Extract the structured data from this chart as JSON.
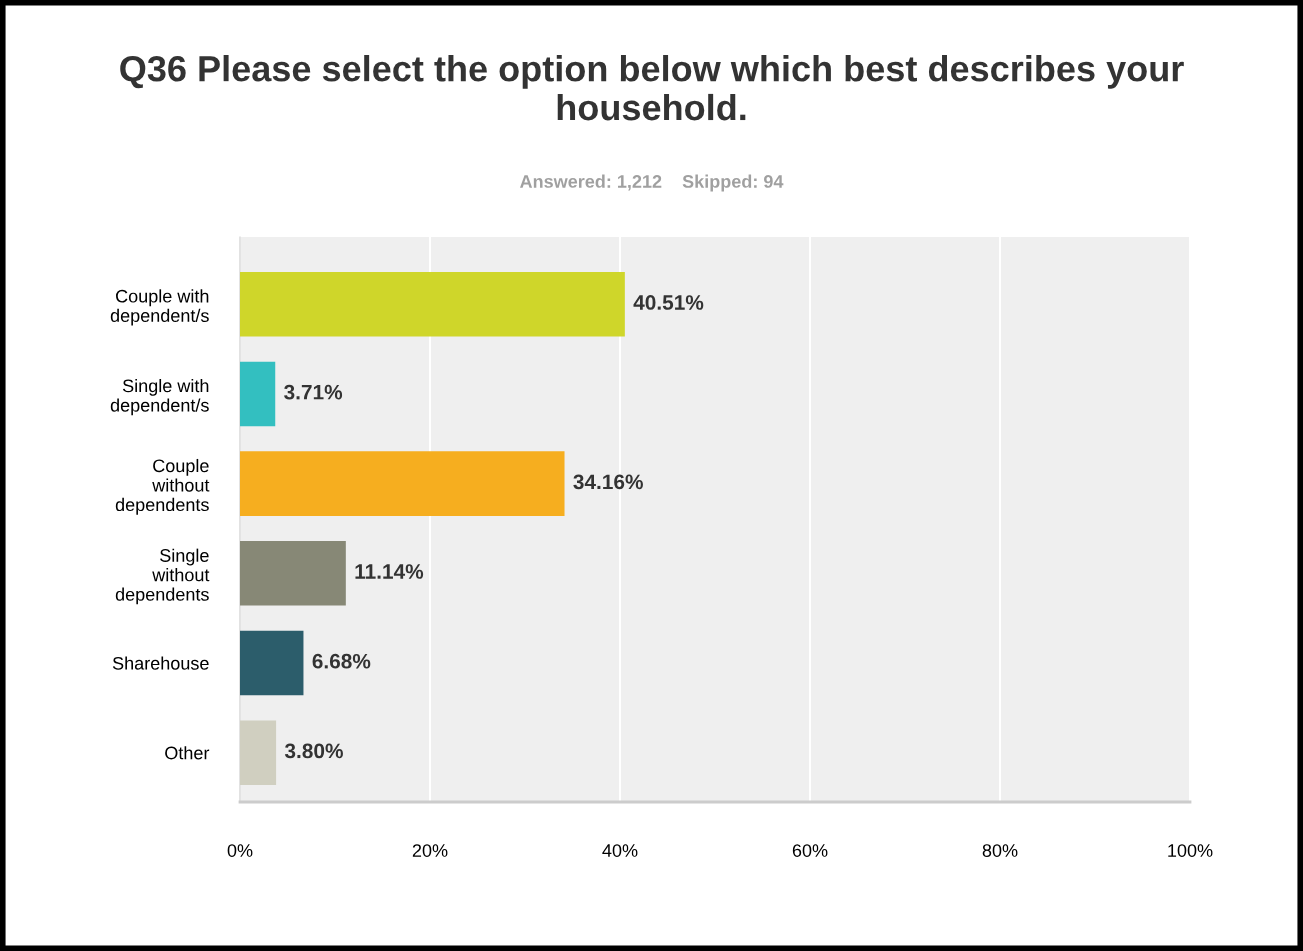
{
  "chart_data": {
    "type": "bar",
    "orientation": "horizontal",
    "title": "Q36 Please select the option below which best describes your household.",
    "subtitle": "Answered: 1,212    Skipped: 94",
    "categories": [
      "Couple with\ndependent/s",
      "Single with\ndependent/s",
      "Couple\nwithout\ndependents",
      "Single\nwithout\ndependents",
      "Sharehouse",
      "Other"
    ],
    "values": [
      40.51,
      3.71,
      34.16,
      11.14,
      6.68,
      3.8
    ],
    "colors": [
      "#cfd62a",
      "#33bfc0",
      "#f6ae1f",
      "#878876",
      "#2c5d6b",
      "#d0cfc0"
    ],
    "value_labels": [
      "40.51%",
      "3.71%",
      "34.16%",
      "11.14%",
      "6.68%",
      "3.80%"
    ],
    "xlim": [
      0,
      100
    ],
    "xticks": [
      {
        "value": 0,
        "label": "0%"
      },
      {
        "value": 20,
        "label": "20%"
      },
      {
        "value": 40,
        "label": "40%"
      },
      {
        "value": 60,
        "label": "60%"
      },
      {
        "value": 80,
        "label": "80%"
      },
      {
        "value": 100,
        "label": "100%"
      }
    ],
    "grid": "x",
    "legend": false
  }
}
